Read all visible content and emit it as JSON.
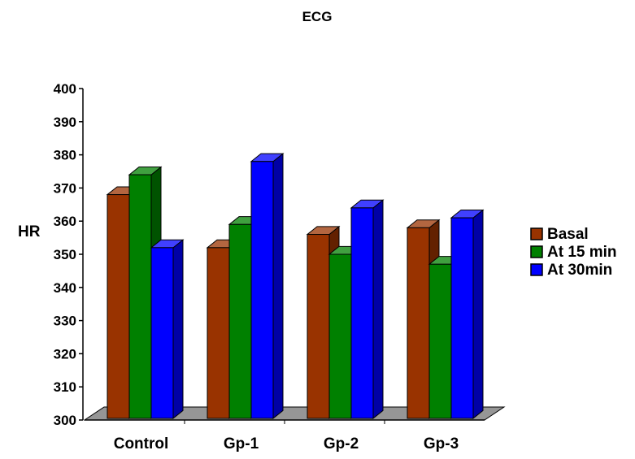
{
  "chart_data": {
    "type": "bar",
    "title": "ECG",
    "xlabel": "",
    "ylabel": "HR",
    "ylim": [
      300,
      400
    ],
    "ytick_step": 10,
    "yticks": [
      "300",
      "310",
      "320",
      "330",
      "340",
      "350",
      "360",
      "370",
      "380",
      "390",
      "400"
    ],
    "categories": [
      "Control",
      "Gp-1",
      "Gp-2",
      "Gp-3"
    ],
    "series": [
      {
        "name": "Basal",
        "values": [
          368,
          352,
          356,
          358
        ],
        "color": "#993300"
      },
      {
        "name": "At 15 min",
        "values": [
          374,
          359,
          350,
          347
        ],
        "color": "#008000"
      },
      {
        "name": "At 30min",
        "values": [
          352,
          378,
          364,
          361
        ],
        "color": "#0000ff"
      }
    ],
    "grid": false,
    "legend_position": "right",
    "style": "3d-bar",
    "floor_color": "#969696"
  }
}
